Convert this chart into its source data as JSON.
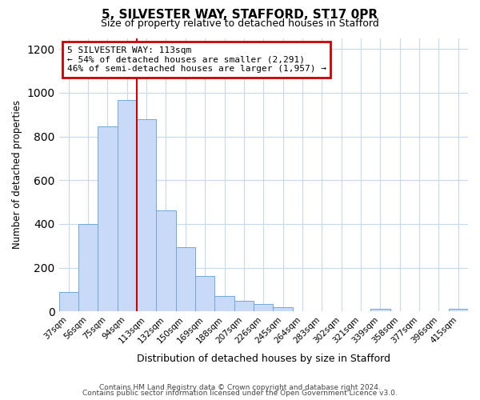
{
  "title1": "5, SILVESTER WAY, STAFFORD, ST17 0PR",
  "title2": "Size of property relative to detached houses in Stafford",
  "xlabel": "Distribution of detached houses by size in Stafford",
  "ylabel": "Number of detached properties",
  "categories": [
    "37sqm",
    "56sqm",
    "75sqm",
    "94sqm",
    "113sqm",
    "132sqm",
    "150sqm",
    "169sqm",
    "188sqm",
    "207sqm",
    "226sqm",
    "245sqm",
    "264sqm",
    "283sqm",
    "302sqm",
    "321sqm",
    "339sqm",
    "358sqm",
    "377sqm",
    "396sqm",
    "415sqm"
  ],
  "values": [
    90,
    400,
    845,
    965,
    880,
    460,
    295,
    160,
    70,
    50,
    33,
    18,
    0,
    0,
    0,
    0,
    10,
    0,
    0,
    0,
    10
  ],
  "highlight_index": 4,
  "bar_color": "#c9daf8",
  "bar_edge_color": "#6fa8dc",
  "highlight_line_color": "#cc0000",
  "annotation_title": "5 SILVESTER WAY: 113sqm",
  "annotation_line1": "← 54% of detached houses are smaller (2,291)",
  "annotation_line2": "46% of semi-detached houses are larger (1,957) →",
  "annotation_box_facecolor": "#ffffff",
  "annotation_box_edgecolor": "#cc0000",
  "ylim": [
    0,
    1250
  ],
  "footer1": "Contains HM Land Registry data © Crown copyright and database right 2024.",
  "footer2": "Contains public sector information licensed under the Open Government Licence v3.0.",
  "background_color": "#ffffff",
  "grid_color": "#c5d8f0"
}
